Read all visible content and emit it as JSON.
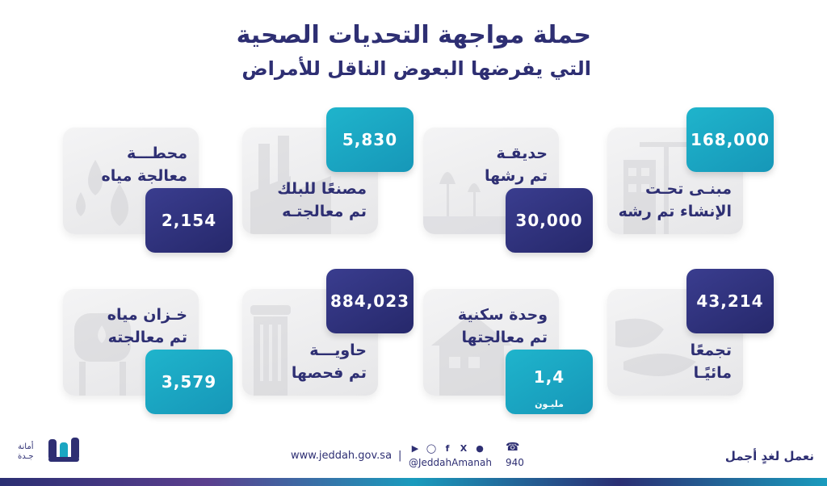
{
  "title": {
    "line1": "حملة مواجهة التحديات الصحية",
    "line2": "التي يفرضها البعوض الناقل للأمراض"
  },
  "cards": {
    "c1": {
      "label": "مبنـى تحـت\nالإنشاء تم رشه",
      "value": "168,000",
      "icon": "crane-building-icon"
    },
    "c2": {
      "label": "حديقـة\nتم رشها",
      "value": "30,000",
      "icon": "garden-icon"
    },
    "c3": {
      "label": "مصنعًا للبلك\nتم معالجتـه",
      "value": "5,830",
      "icon": "factory-icon"
    },
    "c4": {
      "label": "محطـــة\nمعالجة مياه",
      "value": "2,154",
      "icon": "water-drops-icon"
    },
    "c5": {
      "label": "تجمعًا\nمائيًـا",
      "value": "43,214",
      "icon": "puddle-icon"
    },
    "c6": {
      "label": "وحدة سكنية\nتم معالجتها",
      "value": "1,4",
      "sub": "مليـون",
      "icon": "house-icon"
    },
    "c7": {
      "label": "حاويـــة\nتم فحصها",
      "value": "884,023",
      "icon": "trash-bin-icon"
    },
    "c8": {
      "label": "خـزان مياه\nتم معالجته",
      "value": "3,579",
      "icon": "water-tank-icon"
    }
  },
  "footer": {
    "slogan": "نعمل لغدٍ أجمل",
    "website": "www.jeddah.gov.sa",
    "separator": "|",
    "handle": "@JeddahAmanah",
    "phone": "940",
    "logo_text": "أمانة\nجـدة",
    "social_icons": [
      "youtube-icon",
      "instagram-icon",
      "facebook-icon",
      "x-icon",
      "snapchat-icon"
    ]
  },
  "colors": {
    "navy": "#2e2f73",
    "dark_badge": "#2b2e7a",
    "teal_badge": "#1aa6c2",
    "card_bg": "#efeff0"
  }
}
